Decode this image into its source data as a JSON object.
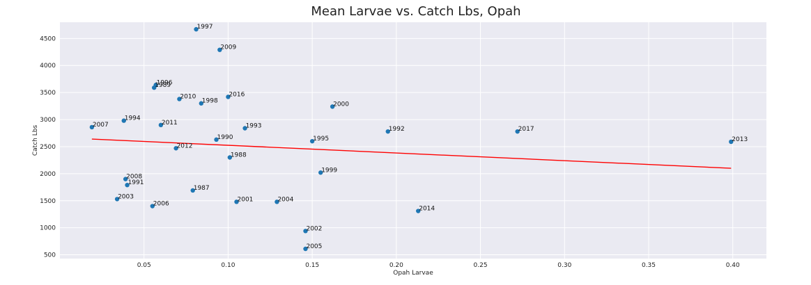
{
  "chart_data": {
    "type": "scatter",
    "title": "Mean Larvae vs. Catch Lbs, Opah",
    "xlabel": "Opah Larvae",
    "ylabel": "Catch Lbs",
    "xlim": [
      0.0,
      0.42
    ],
    "ylim": [
      430,
      4800
    ],
    "xticks": [
      0.05,
      0.1,
      0.15,
      0.2,
      0.25,
      0.3,
      0.35,
      0.4
    ],
    "xtick_labels": [
      "0.05",
      "0.10",
      "0.15",
      "0.20",
      "0.25",
      "0.30",
      "0.35",
      "0.40"
    ],
    "yticks": [
      500,
      1000,
      1500,
      2000,
      2500,
      3000,
      3500,
      4000,
      4500
    ],
    "ytick_labels": [
      "500",
      "1000",
      "1500",
      "2000",
      "2500",
      "3000",
      "3500",
      "4000",
      "4500"
    ],
    "grid": true,
    "background": "#eaeaf2",
    "point_color": "#1f77b4",
    "trend_color": "#ff0000",
    "trendline": {
      "x": [
        0.019,
        0.399
      ],
      "y": [
        2640,
        2100
      ]
    },
    "points": [
      {
        "label": "1997",
        "x": 0.081,
        "y": 4670
      },
      {
        "label": "2009",
        "x": 0.095,
        "y": 4290
      },
      {
        "label": "1996",
        "x": 0.057,
        "y": 3640
      },
      {
        "label": "1989",
        "x": 0.056,
        "y": 3590
      },
      {
        "label": "2010",
        "x": 0.071,
        "y": 3380
      },
      {
        "label": "2016",
        "x": 0.1,
        "y": 3420
      },
      {
        "label": "1998",
        "x": 0.084,
        "y": 3300
      },
      {
        "label": "2000",
        "x": 0.162,
        "y": 3240
      },
      {
        "label": "2007",
        "x": 0.019,
        "y": 2860
      },
      {
        "label": "1994",
        "x": 0.038,
        "y": 2980
      },
      {
        "label": "2011",
        "x": 0.06,
        "y": 2900
      },
      {
        "label": "1993",
        "x": 0.11,
        "y": 2840
      },
      {
        "label": "1992",
        "x": 0.195,
        "y": 2780
      },
      {
        "label": "2017",
        "x": 0.272,
        "y": 2780
      },
      {
        "label": "1990",
        "x": 0.093,
        "y": 2630
      },
      {
        "label": "1995",
        "x": 0.15,
        "y": 2600
      },
      {
        "label": "2013",
        "x": 0.399,
        "y": 2590
      },
      {
        "label": "2012",
        "x": 0.069,
        "y": 2470
      },
      {
        "label": "1988",
        "x": 0.101,
        "y": 2300
      },
      {
        "label": "1999",
        "x": 0.155,
        "y": 2020
      },
      {
        "label": "2008",
        "x": 0.039,
        "y": 1900
      },
      {
        "label": "1991",
        "x": 0.04,
        "y": 1790
      },
      {
        "label": "1987",
        "x": 0.079,
        "y": 1690
      },
      {
        "label": "2003",
        "x": 0.034,
        "y": 1530
      },
      {
        "label": "2001",
        "x": 0.105,
        "y": 1480
      },
      {
        "label": "2004",
        "x": 0.129,
        "y": 1480
      },
      {
        "label": "2006",
        "x": 0.055,
        "y": 1400
      },
      {
        "label": "2014",
        "x": 0.213,
        "y": 1310
      },
      {
        "label": "2002",
        "x": 0.146,
        "y": 940
      },
      {
        "label": "2005",
        "x": 0.146,
        "y": 610
      }
    ]
  }
}
